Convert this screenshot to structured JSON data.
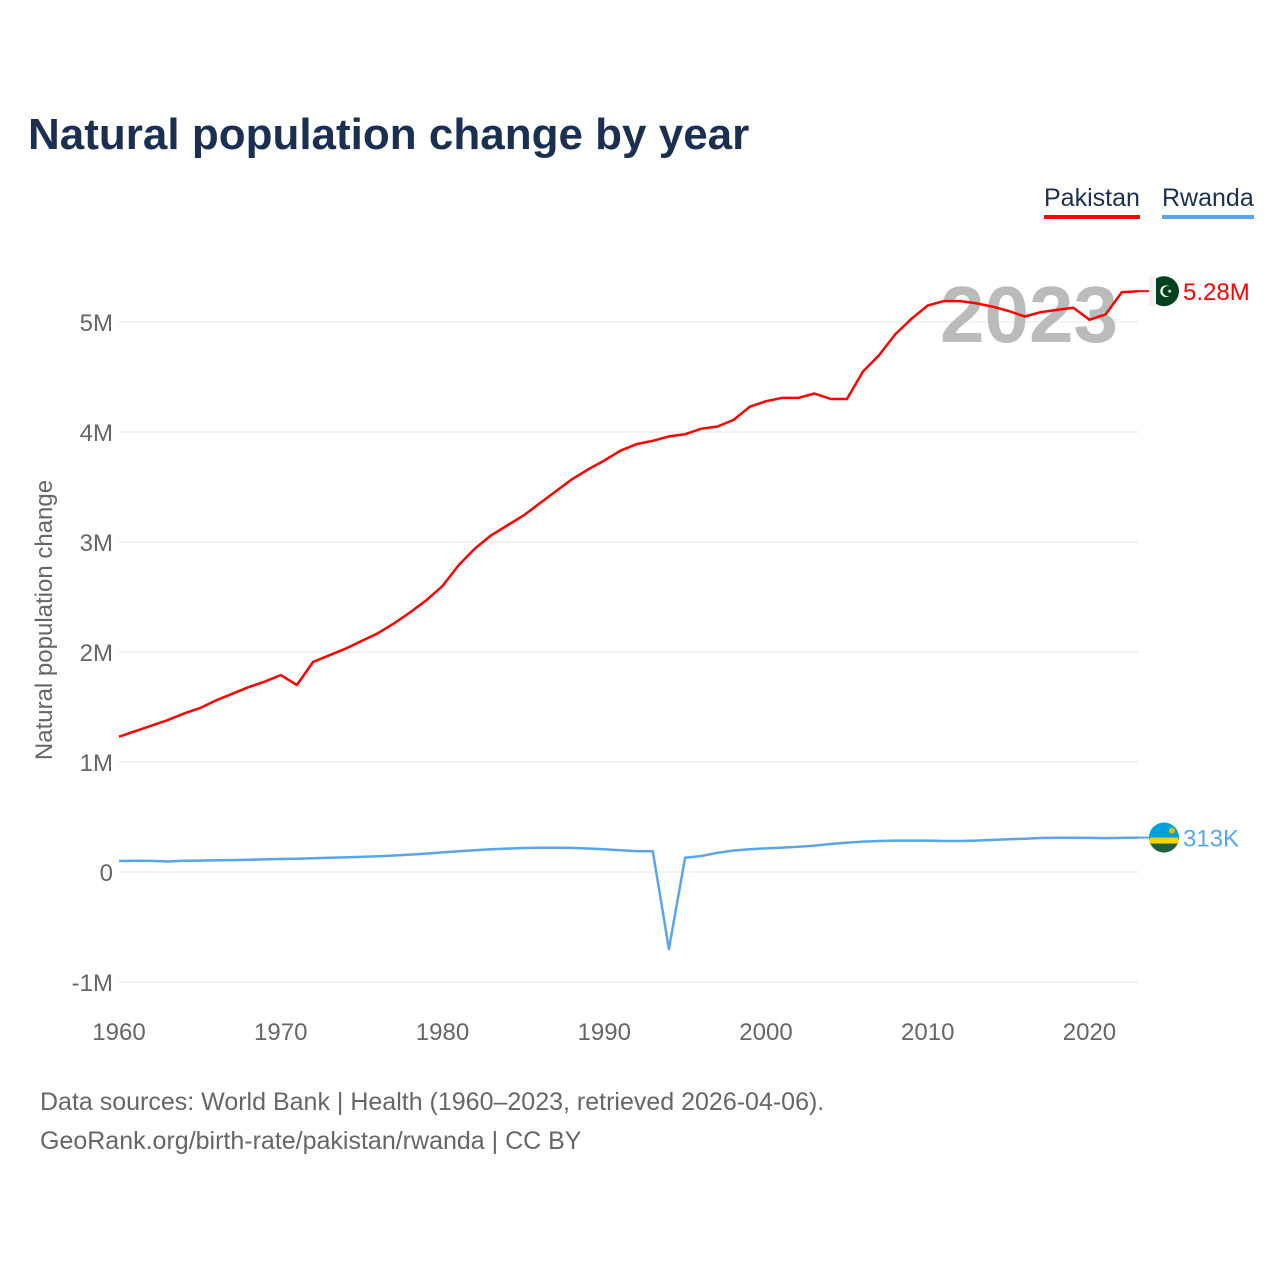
{
  "chart_data": {
    "type": "line",
    "title": "Natural population change by year",
    "xlabel": "",
    "ylabel": "Natural population change",
    "xlim": [
      1960,
      2023
    ],
    "ylim": [
      -1000000,
      5500000
    ],
    "x_ticks": [
      1960,
      1970,
      1980,
      1990,
      2000,
      2010,
      2020
    ],
    "y_ticks": [
      -1000000,
      0,
      1000000,
      2000000,
      3000000,
      4000000,
      5000000
    ],
    "y_tick_labels": [
      "-1M",
      "0",
      "1M",
      "2M",
      "3M",
      "4M",
      "5M"
    ],
    "grid": true,
    "legend_position": "top-right",
    "year_label": "2023",
    "x": [
      1960,
      1961,
      1962,
      1963,
      1964,
      1965,
      1966,
      1967,
      1968,
      1969,
      1970,
      1971,
      1972,
      1973,
      1974,
      1975,
      1976,
      1977,
      1978,
      1979,
      1980,
      1981,
      1982,
      1983,
      1984,
      1985,
      1986,
      1987,
      1988,
      1989,
      1990,
      1991,
      1992,
      1993,
      1994,
      1995,
      1996,
      1997,
      1998,
      1999,
      2000,
      2001,
      2002,
      2003,
      2004,
      2005,
      2006,
      2007,
      2008,
      2009,
      2010,
      2011,
      2012,
      2013,
      2014,
      2015,
      2016,
      2017,
      2018,
      2019,
      2020,
      2021,
      2022,
      2023
    ],
    "series": [
      {
        "name": "Pakistan",
        "color": "#ff0000",
        "end_label": "5.28M",
        "flag": "pakistan-flag",
        "values": [
          1230000,
          1280000,
          1330000,
          1380000,
          1440000,
          1490000,
          1560000,
          1620000,
          1680000,
          1730000,
          1790000,
          1700000,
          1910000,
          1970000,
          2030000,
          2100000,
          2170000,
          2260000,
          2360000,
          2470000,
          2600000,
          2790000,
          2940000,
          3060000,
          3150000,
          3240000,
          3350000,
          3460000,
          3570000,
          3660000,
          3740000,
          3830000,
          3890000,
          3920000,
          3960000,
          3980000,
          4030000,
          4050000,
          4110000,
          4230000,
          4280000,
          4310000,
          4310000,
          4350000,
          4300000,
          4300000,
          4550000,
          4700000,
          4890000,
          5030000,
          5150000,
          5190000,
          5190000,
          5170000,
          5140000,
          5100000,
          5050000,
          5090000,
          5110000,
          5130000,
          5020000,
          5070000,
          5270000,
          5280000
        ]
      },
      {
        "name": "Rwanda",
        "color": "#5aa5ea",
        "end_label": "313K",
        "flag": "rwanda-flag",
        "values": [
          100000,
          102000,
          101000,
          95000,
          103000,
          104000,
          106000,
          108000,
          111000,
          115000,
          118000,
          121000,
          125000,
          129000,
          133000,
          137000,
          143000,
          150000,
          158000,
          167000,
          178000,
          188000,
          198000,
          206000,
          213000,
          218000,
          221000,
          221000,
          219000,
          214000,
          206000,
          197000,
          190000,
          188000,
          -700000,
          130000,
          145000,
          175000,
          195000,
          207000,
          215000,
          222000,
          229000,
          240000,
          255000,
          267000,
          276000,
          282000,
          285000,
          285000,
          285000,
          282000,
          282000,
          285000,
          292000,
          298000,
          303000,
          309000,
          311000,
          311000,
          310000,
          308000,
          310000,
          313000
        ]
      }
    ]
  },
  "footer": {
    "line1": "Data sources: World Bank | Health (1960–2023, retrieved 2026-04-06).",
    "line2": "GeoRank.org/birth-rate/pakistan/rwanda | CC BY"
  }
}
